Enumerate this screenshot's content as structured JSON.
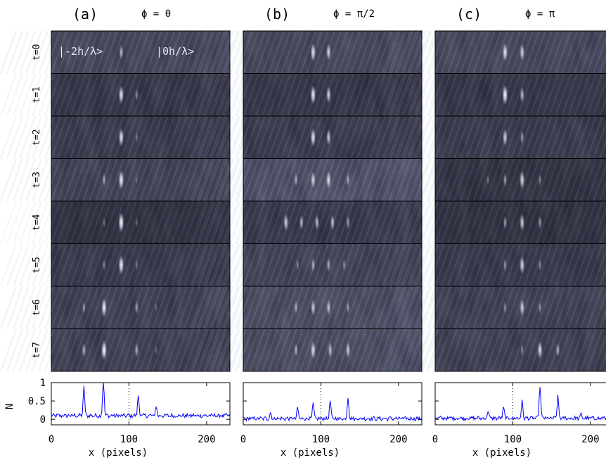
{
  "chart_data": {
    "type": "line",
    "panels": [
      {
        "label": "(a)",
        "phase": "ϕ = 0",
        "state_labels": [
          "|-2h/λ>",
          "|0h/λ>"
        ],
        "peaks": [
          [
            {
              "x": 90,
              "a": 0.65
            }
          ],
          [
            {
              "x": 90,
              "a": 0.9
            },
            {
              "x": 110,
              "a": 0.45
            }
          ],
          [
            {
              "x": 90,
              "a": 0.9
            },
            {
              "x": 110,
              "a": 0.35
            }
          ],
          [
            {
              "x": 68,
              "a": 0.55
            },
            {
              "x": 90,
              "a": 0.95
            },
            {
              "x": 110,
              "a": 0.25
            }
          ],
          [
            {
              "x": 68,
              "a": 0.35
            },
            {
              "x": 90,
              "a": 1.0
            },
            {
              "x": 110,
              "a": 0.3
            }
          ],
          [
            {
              "x": 68,
              "a": 0.4
            },
            {
              "x": 90,
              "a": 0.95
            },
            {
              "x": 110,
              "a": 0.35
            }
          ],
          [
            {
              "x": 42,
              "a": 0.5
            },
            {
              "x": 68,
              "a": 0.95
            },
            {
              "x": 110,
              "a": 0.55
            },
            {
              "x": 135,
              "a": 0.3
            }
          ],
          [
            {
              "x": 42,
              "a": 0.6
            },
            {
              "x": 68,
              "a": 1.0
            },
            {
              "x": 110,
              "a": 0.6
            },
            {
              "x": 135,
              "a": 0.3
            }
          ]
        ]
      },
      {
        "label": "(b)",
        "phase": "ϕ = π/2",
        "state_labels": [],
        "peaks": [
          [
            {
              "x": 90,
              "a": 0.9
            },
            {
              "x": 110,
              "a": 0.8
            }
          ],
          [
            {
              "x": 90,
              "a": 0.95
            },
            {
              "x": 110,
              "a": 0.8
            }
          ],
          [
            {
              "x": 90,
              "a": 0.9
            },
            {
              "x": 110,
              "a": 0.75
            }
          ],
          [
            {
              "x": 68,
              "a": 0.55
            },
            {
              "x": 90,
              "a": 0.8
            },
            {
              "x": 110,
              "a": 0.85
            },
            {
              "x": 135,
              "a": 0.55
            }
          ],
          [
            {
              "x": 55,
              "a": 0.8
            },
            {
              "x": 75,
              "a": 0.65
            },
            {
              "x": 95,
              "a": 0.7
            },
            {
              "x": 115,
              "a": 0.7
            },
            {
              "x": 135,
              "a": 0.55
            }
          ],
          [
            {
              "x": 70,
              "a": 0.4
            },
            {
              "x": 90,
              "a": 0.6
            },
            {
              "x": 110,
              "a": 0.6
            },
            {
              "x": 130,
              "a": 0.45
            }
          ],
          [
            {
              "x": 68,
              "a": 0.55
            },
            {
              "x": 90,
              "a": 0.75
            },
            {
              "x": 110,
              "a": 0.7
            },
            {
              "x": 135,
              "a": 0.5
            }
          ],
          [
            {
              "x": 68,
              "a": 0.6
            },
            {
              "x": 90,
              "a": 0.85
            },
            {
              "x": 112,
              "a": 0.7
            },
            {
              "x": 135,
              "a": 0.75
            }
          ]
        ]
      },
      {
        "label": "(c)",
        "phase": "ϕ = π",
        "state_labels": [],
        "peaks": [
          [
            {
              "x": 90,
              "a": 0.9
            },
            {
              "x": 112,
              "a": 0.8
            }
          ],
          [
            {
              "x": 90,
              "a": 1.0
            },
            {
              "x": 112,
              "a": 0.7
            }
          ],
          [
            {
              "x": 90,
              "a": 0.8
            },
            {
              "x": 112,
              "a": 0.55
            }
          ],
          [
            {
              "x": 68,
              "a": 0.35
            },
            {
              "x": 90,
              "a": 0.55
            },
            {
              "x": 112,
              "a": 0.85
            },
            {
              "x": 135,
              "a": 0.45
            }
          ],
          [
            {
              "x": 90,
              "a": 0.55
            },
            {
              "x": 112,
              "a": 0.8
            },
            {
              "x": 135,
              "a": 0.55
            }
          ],
          [
            {
              "x": 90,
              "a": 0.5
            },
            {
              "x": 112,
              "a": 0.85
            },
            {
              "x": 135,
              "a": 0.45
            }
          ],
          [
            {
              "x": 90,
              "a": 0.45
            },
            {
              "x": 112,
              "a": 0.8
            },
            {
              "x": 135,
              "a": 0.45
            }
          ],
          [
            {
              "x": 112,
              "a": 0.45
            },
            {
              "x": 135,
              "a": 0.85
            },
            {
              "x": 158,
              "a": 0.6
            }
          ]
        ]
      }
    ],
    "rows": [
      "t=0",
      "t=1",
      "t=2",
      "t=3",
      "t=4",
      "t=5",
      "t=6",
      "t=7"
    ],
    "row_brightness": [
      0.35,
      0.22,
      0.25,
      0.32,
      0.18,
      0.24,
      0.3,
      0.3
    ],
    "profiles": [
      {
        "baseline": 0.1,
        "noise": 0.05,
        "peaks": [
          {
            "x": 42,
            "y": 0.78
          },
          {
            "x": 67,
            "y": 1.0
          },
          {
            "x": 112,
            "y": 0.55
          },
          {
            "x": 135,
            "y": 0.25
          }
        ]
      },
      {
        "baseline": 0.02,
        "noise": 0.05,
        "peaks": [
          {
            "x": 70,
            "y": 0.28
          },
          {
            "x": 90,
            "y": 0.4
          },
          {
            "x": 112,
            "y": 0.48
          },
          {
            "x": 135,
            "y": 0.6
          },
          {
            "x": 35,
            "y": 0.15
          }
        ]
      },
      {
        "baseline": 0.03,
        "noise": 0.05,
        "peaks": [
          {
            "x": 68,
            "y": 0.2
          },
          {
            "x": 88,
            "y": 0.3
          },
          {
            "x": 112,
            "y": 0.45
          },
          {
            "x": 135,
            "y": 0.9
          },
          {
            "x": 158,
            "y": 0.6
          },
          {
            "x": 188,
            "y": 0.1
          }
        ]
      }
    ],
    "marker_x": 100,
    "xlabel": "x (pixels)",
    "ylabel": "N",
    "xticks": [
      0,
      100,
      200
    ],
    "yticks": [
      {
        "value": 0,
        "label": "0"
      },
      {
        "value": 0.5,
        "label": "0.5"
      },
      {
        "value": 1,
        "label": "1"
      }
    ],
    "xlim": [
      0,
      230
    ],
    "ylim": [
      -0.15,
      1.0
    ],
    "line_color": "#0000ff",
    "image_colors": {
      "background": "#262838",
      "peak": "#ffffff"
    }
  }
}
